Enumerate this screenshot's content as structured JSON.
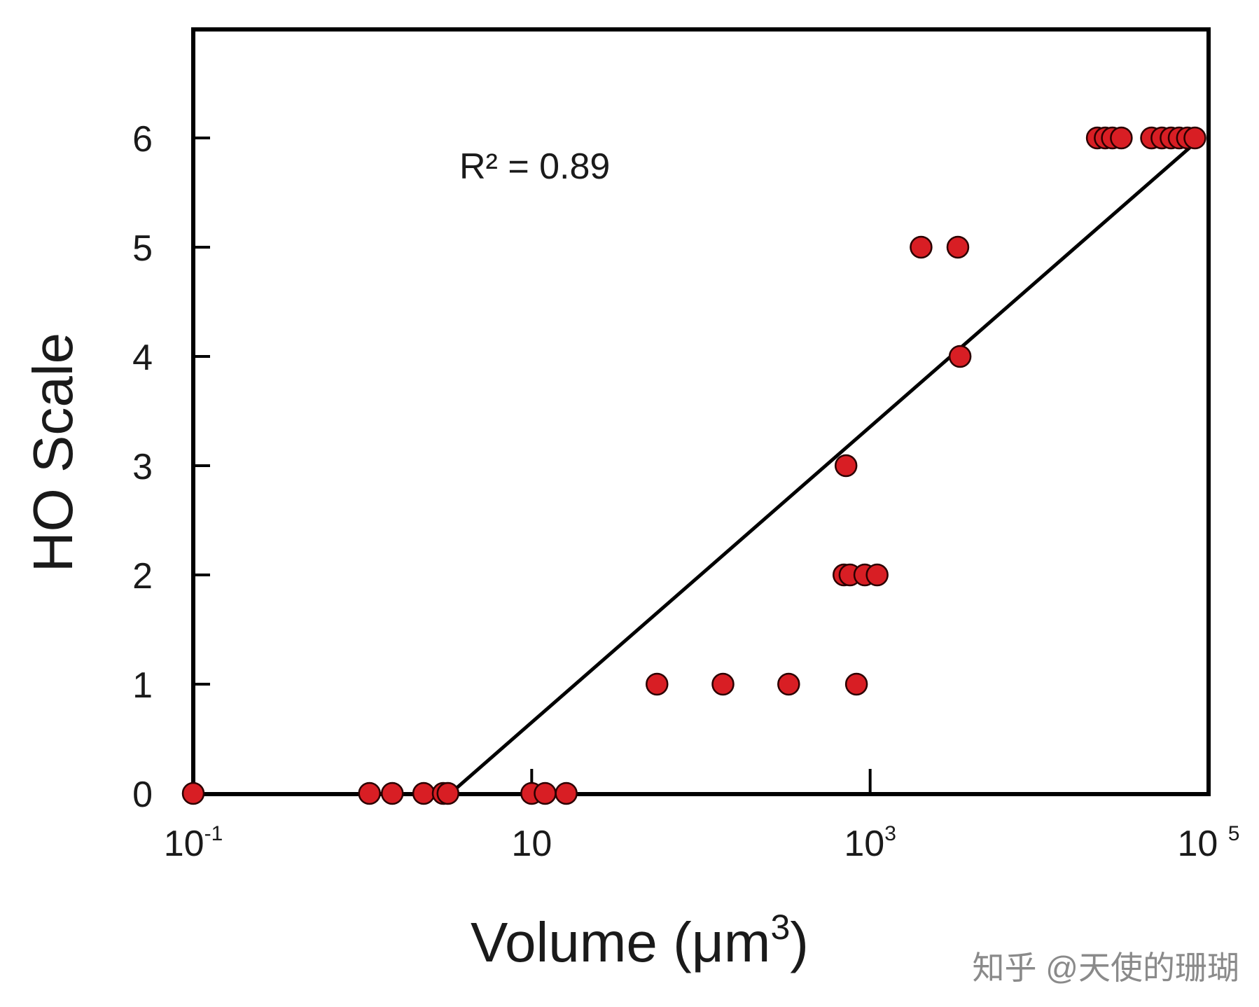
{
  "chart_data": {
    "type": "scatter",
    "xlabel": "Volume (μm",
    "xlabel_sup": "3",
    "ylabel": "HO Scale",
    "x_scale": "log",
    "xlim": [
      0.1,
      100000
    ],
    "ylim": [
      0,
      6
    ],
    "x_ticks": [
      {
        "value": 0.1,
        "base": "10",
        "exp": "-1"
      },
      {
        "value": 10,
        "base": "10",
        "exp": ""
      },
      {
        "value": 1000,
        "base": "10",
        "exp": "3"
      },
      {
        "value": 100000,
        "base": "10 ",
        "exp": "5"
      }
    ],
    "y_ticks": [
      0,
      1,
      2,
      3,
      4,
      5,
      6
    ],
    "annotation": {
      "text": "R² = 0.89"
    },
    "grid": false,
    "marker_color": "#d81e24",
    "line_color": "#000000",
    "points": [
      {
        "x": 0.1,
        "y": 0
      },
      {
        "x": 1.1,
        "y": 0
      },
      {
        "x": 1.5,
        "y": 0
      },
      {
        "x": 2.3,
        "y": 0
      },
      {
        "x": 3.0,
        "y": 0
      },
      {
        "x": 3.2,
        "y": 0
      },
      {
        "x": 10,
        "y": 0
      },
      {
        "x": 12,
        "y": 0
      },
      {
        "x": 16,
        "y": 0
      },
      {
        "x": 55,
        "y": 1
      },
      {
        "x": 135,
        "y": 1
      },
      {
        "x": 330,
        "y": 1
      },
      {
        "x": 830,
        "y": 1
      },
      {
        "x": 700,
        "y": 2
      },
      {
        "x": 760,
        "y": 2
      },
      {
        "x": 930,
        "y": 2
      },
      {
        "x": 1100,
        "y": 2
      },
      {
        "x": 720,
        "y": 3
      },
      {
        "x": 3400,
        "y": 4
      },
      {
        "x": 2000,
        "y": 5
      },
      {
        "x": 3300,
        "y": 5
      },
      {
        "x": 22000,
        "y": 6
      },
      {
        "x": 24500,
        "y": 6
      },
      {
        "x": 27000,
        "y": 6
      },
      {
        "x": 30500,
        "y": 6
      },
      {
        "x": 46000,
        "y": 6
      },
      {
        "x": 53000,
        "y": 6
      },
      {
        "x": 60000,
        "y": 6
      },
      {
        "x": 67000,
        "y": 6
      },
      {
        "x": 75000,
        "y": 6
      },
      {
        "x": 83000,
        "y": 6
      }
    ],
    "fit_line": [
      {
        "x": 3.6,
        "y": 0.05
      },
      {
        "x": 90000,
        "y": 6.0
      }
    ]
  },
  "watermark": "知乎 @天使的珊瑚"
}
